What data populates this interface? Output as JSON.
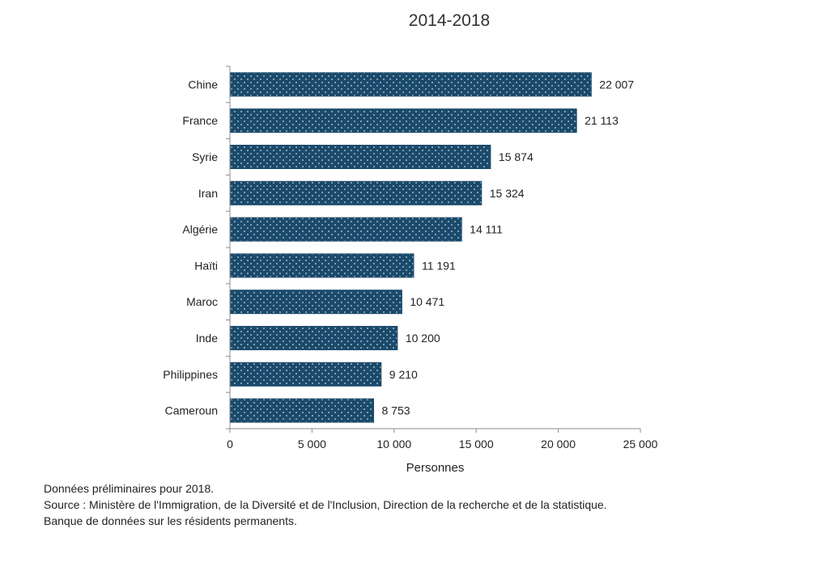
{
  "chart_data": {
    "type": "bar",
    "orientation": "horizontal",
    "title": "2014-2018",
    "categories": [
      "Chine",
      "France",
      "Syrie",
      "Iran",
      "Algérie",
      "Haïti",
      "Maroc",
      "Inde",
      "Philippines",
      "Cameroun"
    ],
    "values": [
      22007,
      21113,
      15874,
      15324,
      14111,
      11191,
      10471,
      10200,
      9210,
      8753
    ],
    "value_labels": [
      "22 007",
      "21 113",
      "15 874",
      "15 324",
      "14 111",
      "11 191",
      "10 471",
      "10 200",
      "9 210",
      "8 753"
    ],
    "xlabel": "Personnes",
    "ylabel": "",
    "xlim": [
      0,
      25000
    ],
    "xticks": [
      0,
      5000,
      10000,
      15000,
      20000,
      25000
    ],
    "xtick_labels": [
      "0",
      "5 000",
      "10 000",
      "15 000",
      "20 000",
      "25 000"
    ],
    "grid": false,
    "bar_color": "#1b4a6b",
    "pattern": "dotted"
  },
  "notes": {
    "line1": "Données préliminaires pour 2018.",
    "line2": "Source : Ministère de l'Immigration, de la Diversité et de l'Inclusion, Direction de la recherche et de la statistique.",
    "line3": "Banque de données sur les résidents permanents."
  }
}
